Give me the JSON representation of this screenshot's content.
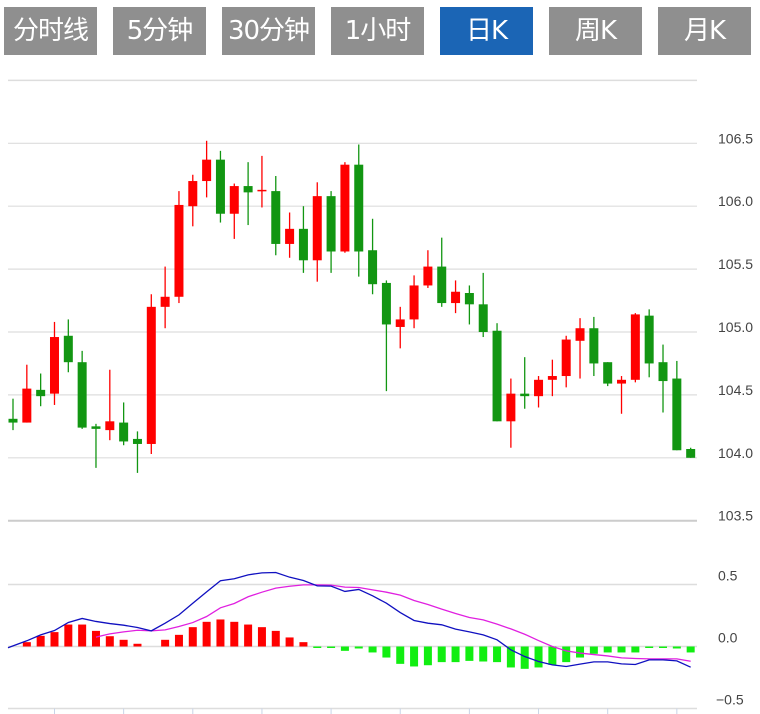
{
  "tabs": [
    {
      "label": "分时线",
      "active": false
    },
    {
      "label": "5分钟",
      "active": false
    },
    {
      "label": "30分钟",
      "active": false
    },
    {
      "label": "1小时",
      "active": false
    },
    {
      "label": "日K",
      "active": true
    },
    {
      "label": "周K",
      "active": false
    },
    {
      "label": "月K",
      "active": false
    }
  ],
  "colors": {
    "up": "#ff0000",
    "down": "#129612",
    "dif": "#1010c0",
    "dea": "#e020e0",
    "hist_up": "#ff0000",
    "hist_down": "#11ee11",
    "tab_bg": "#8f8f8f",
    "tab_active": "#1b65b5"
  },
  "chart_data": [
    {
      "type": "candlestick",
      "title": "日K",
      "ylim": [
        103.5,
        107.0
      ],
      "yticks": [
        "106.5",
        "106.0",
        "105.5",
        "105.0",
        "104.5",
        "104.0",
        "103.5"
      ],
      "ytick_values": [
        106.5,
        106.0,
        105.5,
        105.0,
        104.5,
        104.0,
        103.5
      ],
      "grid": true,
      "ohlc": [
        [
          104.31,
          104.47,
          104.22,
          104.28
        ],
        [
          104.28,
          104.74,
          104.28,
          104.55
        ],
        [
          104.54,
          104.67,
          104.41,
          104.49
        ],
        [
          104.51,
          105.08,
          104.42,
          104.96
        ],
        [
          104.97,
          105.1,
          104.68,
          104.76
        ],
        [
          104.76,
          104.85,
          104.23,
          104.24
        ],
        [
          104.25,
          104.27,
          103.92,
          104.23
        ],
        [
          104.22,
          104.7,
          104.14,
          104.29
        ],
        [
          104.28,
          104.44,
          104.1,
          104.13
        ],
        [
          104.15,
          104.21,
          103.88,
          104.11
        ],
        [
          104.11,
          105.3,
          104.03,
          105.2
        ],
        [
          105.2,
          105.52,
          105.03,
          105.28
        ],
        [
          105.28,
          106.12,
          105.23,
          106.01
        ],
        [
          106.0,
          106.25,
          105.84,
          106.2
        ],
        [
          106.2,
          106.52,
          106.07,
          106.37
        ],
        [
          106.37,
          106.44,
          105.87,
          105.94
        ],
        [
          105.94,
          106.18,
          105.74,
          106.16
        ],
        [
          106.16,
          106.35,
          105.85,
          106.11
        ],
        [
          106.12,
          106.4,
          105.99,
          106.13
        ],
        [
          106.12,
          106.24,
          105.61,
          105.7
        ],
        [
          105.7,
          105.95,
          105.59,
          105.82
        ],
        [
          105.82,
          106.0,
          105.47,
          105.57
        ],
        [
          105.57,
          106.19,
          105.4,
          106.08
        ],
        [
          106.08,
          106.12,
          105.47,
          105.64
        ],
        [
          105.64,
          106.35,
          105.63,
          106.33
        ],
        [
          106.33,
          106.49,
          105.44,
          105.64
        ],
        [
          105.65,
          105.9,
          105.3,
          105.38
        ],
        [
          105.39,
          105.41,
          104.53,
          105.06
        ],
        [
          105.04,
          105.2,
          104.87,
          105.1
        ],
        [
          105.1,
          105.45,
          105.03,
          105.37
        ],
        [
          105.37,
          105.65,
          105.35,
          105.52
        ],
        [
          105.52,
          105.75,
          105.2,
          105.23
        ],
        [
          105.23,
          105.41,
          105.15,
          105.32
        ],
        [
          105.31,
          105.37,
          105.06,
          105.22
        ],
        [
          105.22,
          105.47,
          104.96,
          105.0
        ],
        [
          105.01,
          105.07,
          104.29,
          104.29
        ],
        [
          104.29,
          104.63,
          104.08,
          104.51
        ],
        [
          104.51,
          104.8,
          104.39,
          104.49
        ],
        [
          104.49,
          104.65,
          104.4,
          104.62
        ],
        [
          104.62,
          104.78,
          104.49,
          104.65
        ],
        [
          104.65,
          104.97,
          104.56,
          104.94
        ],
        [
          104.93,
          105.11,
          104.63,
          105.03
        ],
        [
          105.03,
          105.12,
          104.65,
          104.75
        ],
        [
          104.76,
          104.76,
          104.57,
          104.59
        ],
        [
          104.59,
          104.65,
          104.35,
          104.62
        ],
        [
          104.62,
          105.15,
          104.6,
          105.14
        ],
        [
          105.13,
          105.18,
          104.64,
          104.75
        ],
        [
          104.76,
          104.9,
          104.36,
          104.61
        ],
        [
          104.63,
          104.77,
          104.06,
          104.06
        ],
        [
          104.07,
          104.08,
          104.0,
          104.0
        ]
      ]
    },
    {
      "type": "macd",
      "ylim": [
        -0.5,
        0.5
      ],
      "yticks": [
        "0.5",
        "0.0",
        "−0.5"
      ],
      "ytick_values": [
        0.5,
        0.0,
        -0.5
      ],
      "dif": [
        0.005,
        0.046,
        0.094,
        0.129,
        0.194,
        0.226,
        0.202,
        0.185,
        0.172,
        0.153,
        0.126,
        0.188,
        0.255,
        0.349,
        0.441,
        0.53,
        0.546,
        0.578,
        0.594,
        0.597,
        0.559,
        0.532,
        0.489,
        0.487,
        0.444,
        0.46,
        0.409,
        0.349,
        0.274,
        0.21,
        0.188,
        0.175,
        0.14,
        0.118,
        0.094,
        0.054,
        -0.027,
        -0.081,
        -0.121,
        -0.148,
        -0.161,
        -0.142,
        -0.124,
        -0.124,
        -0.14,
        -0.145,
        -0.108,
        -0.108,
        -0.116,
        -0.167
      ],
      "dea": [
        null,
        null,
        null,
        null,
        null,
        null,
        0.076,
        0.102,
        0.118,
        0.131,
        0.126,
        0.134,
        0.161,
        0.193,
        0.242,
        0.312,
        0.347,
        0.401,
        0.438,
        0.471,
        0.486,
        0.497,
        0.497,
        0.495,
        0.479,
        0.476,
        0.457,
        0.438,
        0.414,
        0.371,
        0.339,
        0.301,
        0.266,
        0.234,
        0.215,
        0.18,
        0.142,
        0.099,
        0.048,
        0.0,
        -0.035,
        -0.053,
        -0.065,
        -0.076,
        -0.092,
        -0.097,
        -0.1,
        -0.1,
        -0.1,
        -0.119
      ],
      "hist": [
        0,
        0.035,
        0.086,
        0.116,
        0.177,
        0.177,
        0.126,
        0.083,
        0.054,
        0.022,
        0,
        0.054,
        0.094,
        0.156,
        0.199,
        0.218,
        0.199,
        0.177,
        0.156,
        0.126,
        0.073,
        0.035,
        -0.008,
        -0.008,
        -0.035,
        -0.016,
        -0.048,
        -0.089,
        -0.14,
        -0.161,
        -0.151,
        -0.126,
        -0.126,
        -0.116,
        -0.121,
        -0.126,
        -0.169,
        -0.18,
        -0.169,
        -0.148,
        -0.126,
        -0.089,
        -0.059,
        -0.048,
        -0.048,
        -0.048,
        -0.008,
        -0.008,
        -0.016,
        -0.048
      ]
    }
  ]
}
